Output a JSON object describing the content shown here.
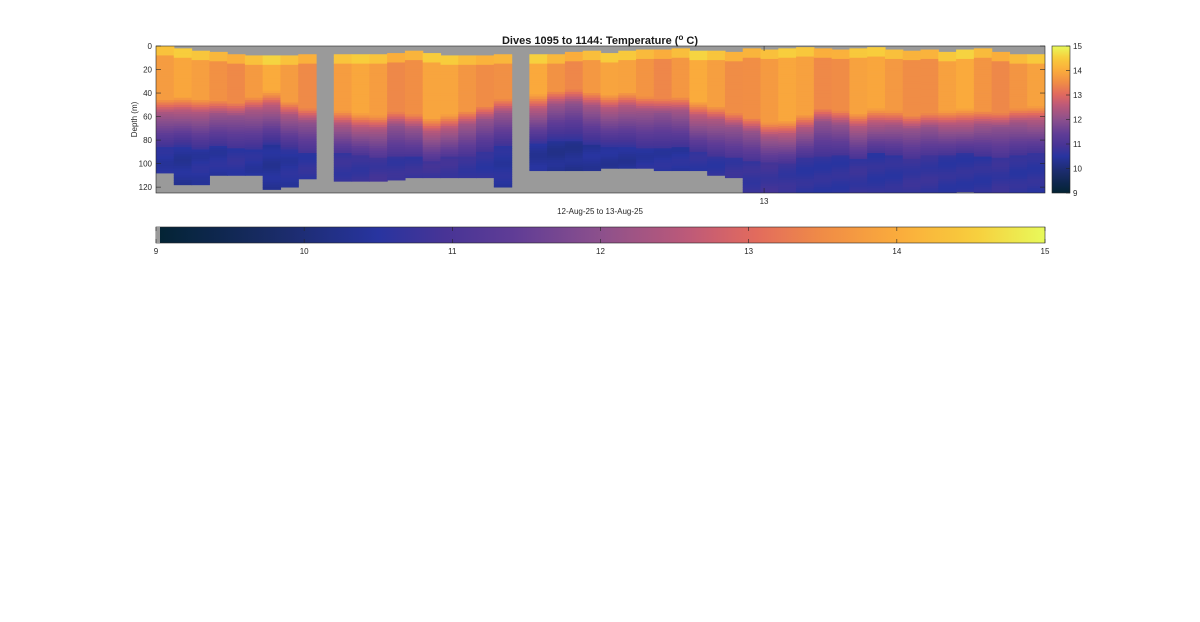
{
  "chart_data": {
    "type": "heatmap",
    "title_main": "Dives 1095 to 1144: Temperature (",
    "title_sup": "o",
    "title_tail": " C)",
    "ylabel": "Depth (m)",
    "xlabel": "12-Aug-25 to 13-Aug-25",
    "y_ticks": [
      "0",
      "20",
      "40",
      "60",
      "80",
      "100",
      "120"
    ],
    "ylim": [
      0,
      125
    ],
    "y_reversed": true,
    "x_ticks": [
      {
        "label": "13",
        "value": 34.2
      }
    ],
    "n_dives": 50,
    "colorbar": {
      "min": 9,
      "max": 15,
      "ticks": [
        "9",
        "10",
        "11",
        "12",
        "13",
        "14",
        "15"
      ],
      "orientation_plot": "vertical-right",
      "orientation_separate": "horizontal-below"
    },
    "missing_color": "#9a9a9a",
    "dives": [
      {
        "top": 0,
        "thermo": 52,
        "cold": 85,
        "bottom": 108,
        "min_t": 10.5
      },
      {
        "top": 2,
        "thermo": 50,
        "cold": 84,
        "bottom": 118,
        "min_t": 10.4
      },
      {
        "top": 4,
        "thermo": 52,
        "cold": 86,
        "bottom": 118,
        "min_t": 10.5
      },
      {
        "top": 5,
        "thermo": 53,
        "cold": 84,
        "bottom": 110,
        "min_t": 10.5
      },
      {
        "top": 7,
        "thermo": 55,
        "cold": 85,
        "bottom": 110,
        "min_t": 10.6
      },
      {
        "top": 8,
        "thermo": 50,
        "cold": 86,
        "bottom": 110,
        "min_t": 10.5
      },
      {
        "top": 8,
        "thermo": 45,
        "cold": 82,
        "bottom": 122,
        "min_t": 10.4
      },
      {
        "top": 8,
        "thermo": 54,
        "cold": 86,
        "bottom": 120,
        "min_t": 10.5
      },
      {
        "top": 7,
        "thermo": 60,
        "cold": 90,
        "bottom": 113,
        "min_t": 10.6
      },
      {
        "top": null
      },
      {
        "top": 7,
        "thermo": 62,
        "cold": 90,
        "bottom": 115,
        "min_t": 10.7
      },
      {
        "top": 7,
        "thermo": 64,
        "cold": 92,
        "bottom": 115,
        "min_t": 10.7
      },
      {
        "top": 7,
        "thermo": 66,
        "cold": 94,
        "bottom": 115,
        "min_t": 10.8
      },
      {
        "top": 6,
        "thermo": 63,
        "cold": 92,
        "bottom": 114,
        "min_t": 10.7
      },
      {
        "top": 4,
        "thermo": 65,
        "cold": 92,
        "bottom": 112,
        "min_t": 10.7
      },
      {
        "top": 6,
        "thermo": 68,
        "cold": 96,
        "bottom": 112,
        "min_t": 10.8
      },
      {
        "top": 8,
        "thermo": 65,
        "cold": 93,
        "bottom": 112,
        "min_t": 10.8
      },
      {
        "top": 8,
        "thermo": 62,
        "cold": 92,
        "bottom": 112,
        "min_t": 10.7
      },
      {
        "top": 8,
        "thermo": 58,
        "cold": 88,
        "bottom": 112,
        "min_t": 10.6
      },
      {
        "top": 7,
        "thermo": 52,
        "cold": 84,
        "bottom": 120,
        "min_t": 10.5
      },
      {
        "top": null
      },
      {
        "top": 7,
        "thermo": 48,
        "cold": 82,
        "bottom": 106,
        "min_t": 10.4
      },
      {
        "top": 7,
        "thermo": 45,
        "cold": 80,
        "bottom": 106,
        "min_t": 10.3
      },
      {
        "top": 5,
        "thermo": 44,
        "cold": 80,
        "bottom": 106,
        "min_t": 10.3
      },
      {
        "top": 4,
        "thermo": 46,
        "cold": 82,
        "bottom": 106,
        "min_t": 10.4
      },
      {
        "top": 6,
        "thermo": 48,
        "cold": 84,
        "bottom": 104,
        "min_t": 10.4
      },
      {
        "top": 4,
        "thermo": 46,
        "cold": 84,
        "bottom": 104,
        "min_t": 10.4
      },
      {
        "top": 3,
        "thermo": 50,
        "cold": 86,
        "bottom": 104,
        "min_t": 10.5
      },
      {
        "top": 3,
        "thermo": 52,
        "cold": 86,
        "bottom": 106,
        "min_t": 10.5
      },
      {
        "top": 2,
        "thermo": 50,
        "cold": 85,
        "bottom": 106,
        "min_t": 10.5
      },
      {
        "top": 4,
        "thermo": 54,
        "cold": 88,
        "bottom": 106,
        "min_t": 10.6
      },
      {
        "top": 4,
        "thermo": 58,
        "cold": 92,
        "bottom": 110,
        "min_t": 10.6
      },
      {
        "top": 5,
        "thermo": 64,
        "cold": 94,
        "bottom": 112,
        "min_t": 10.7
      },
      {
        "top": 2,
        "thermo": 68,
        "cold": 96,
        "bottom": 127,
        "min_t": 10.7
      },
      {
        "top": 3,
        "thermo": 72,
        "cold": 98,
        "bottom": 127,
        "min_t": 10.8
      },
      {
        "top": 2,
        "thermo": 70,
        "cold": 98,
        "bottom": 127,
        "min_t": 10.7
      },
      {
        "top": 1,
        "thermo": 65,
        "cold": 94,
        "bottom": 127,
        "min_t": 10.6
      },
      {
        "top": 2,
        "thermo": 60,
        "cold": 92,
        "bottom": 127,
        "min_t": 10.6
      },
      {
        "top": 3,
        "thermo": 62,
        "cold": 92,
        "bottom": 127,
        "min_t": 10.6
      },
      {
        "top": 2,
        "thermo": 64,
        "cold": 94,
        "bottom": 127,
        "min_t": 10.7
      },
      {
        "top": 1,
        "thermo": 60,
        "cold": 90,
        "bottom": 127,
        "min_t": 10.6
      },
      {
        "top": 3,
        "thermo": 62,
        "cold": 92,
        "bottom": 127,
        "min_t": 10.6
      },
      {
        "top": 4,
        "thermo": 66,
        "cold": 94,
        "bottom": 127,
        "min_t": 10.7
      },
      {
        "top": 3,
        "thermo": 64,
        "cold": 92,
        "bottom": 127,
        "min_t": 10.7
      },
      {
        "top": 5,
        "thermo": 62,
        "cold": 92,
        "bottom": 127,
        "min_t": 10.6
      },
      {
        "top": 3,
        "thermo": 60,
        "cold": 90,
        "bottom": 124,
        "min_t": 10.6
      },
      {
        "top": 2,
        "thermo": 62,
        "cold": 92,
        "bottom": 127,
        "min_t": 10.6
      },
      {
        "top": 5,
        "thermo": 64,
        "cold": 94,
        "bottom": 127,
        "min_t": 10.7
      },
      {
        "top": 7,
        "thermo": 60,
        "cold": 92,
        "bottom": 127,
        "min_t": 10.6
      },
      {
        "top": 7,
        "thermo": 58,
        "cold": 90,
        "bottom": 127,
        "min_t": 10.6
      }
    ]
  }
}
